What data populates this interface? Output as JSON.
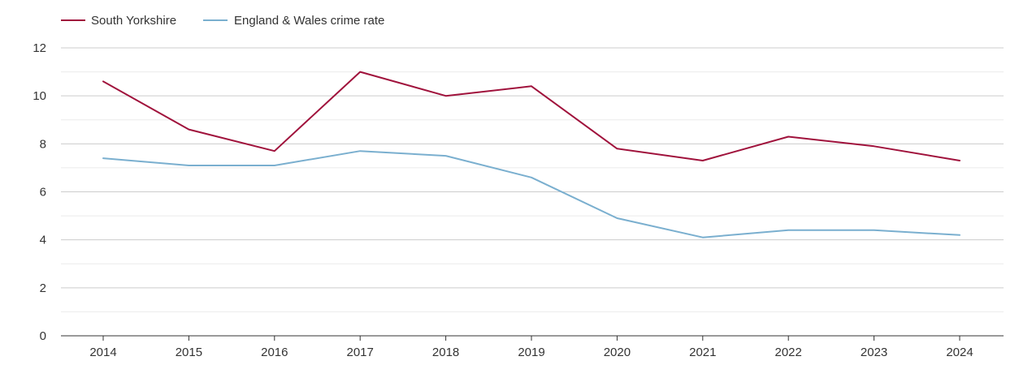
{
  "chart_data": {
    "type": "line",
    "title": "",
    "xlabel": "",
    "ylabel": "",
    "x": [
      "2014",
      "2015",
      "2016",
      "2017",
      "2018",
      "2019",
      "2020",
      "2021",
      "2022",
      "2023",
      "2024"
    ],
    "ylim": [
      0,
      12
    ],
    "yticks": [
      0,
      2,
      4,
      6,
      8,
      10,
      12
    ],
    "grid": true,
    "legend_position": "top-left",
    "series": [
      {
        "name": "South Yorkshire",
        "color": "#a0123c",
        "values": [
          10.6,
          8.6,
          7.7,
          11.0,
          10.0,
          10.4,
          7.8,
          7.3,
          8.3,
          7.9,
          7.3
        ]
      },
      {
        "name": "England & Wales crime rate",
        "color": "#7aafcf",
        "values": [
          7.4,
          7.1,
          7.1,
          7.7,
          7.5,
          6.6,
          4.9,
          4.1,
          4.4,
          4.4,
          4.2
        ]
      }
    ]
  }
}
